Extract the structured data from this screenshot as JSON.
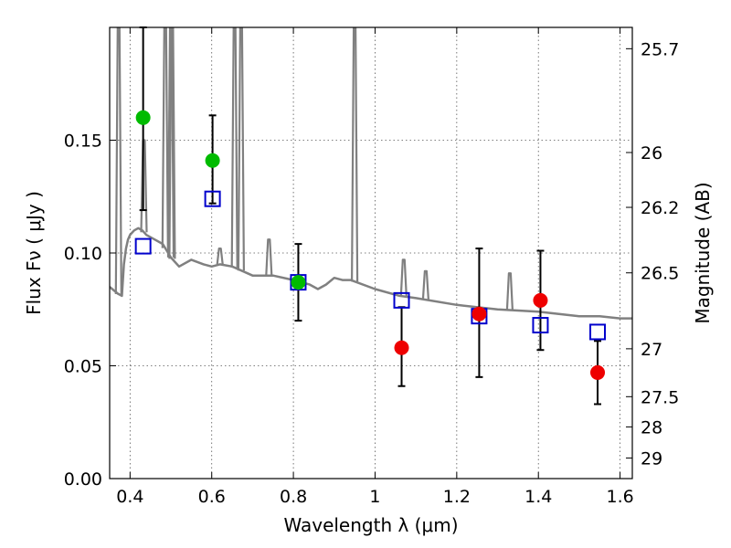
{
  "chart_data": {
    "type": "scatter",
    "title": "",
    "xlabel": "Wavelength  λ (μm)",
    "ylabel": "Flux  Fν  ( μJy )",
    "y2label": "Magnitude (AB)",
    "xlim": [
      0.35,
      1.63
    ],
    "ylim": [
      0.0,
      0.2
    ],
    "grid": true,
    "x_ticks": [
      0.4,
      0.6,
      0.8,
      1.0,
      1.2,
      1.4,
      1.6
    ],
    "x_tick_labels": [
      "0.4",
      "0.6",
      "0.8",
      "1",
      "1.2",
      "1.4",
      "1.6"
    ],
    "y_ticks": [
      0.0,
      0.05,
      0.1,
      0.15
    ],
    "y_tick_labels": [
      "0.00",
      "0.05",
      "0.10",
      "0.15"
    ],
    "y2_ticks": [
      {
        "label": "25.7",
        "flux": 0.19055
      },
      {
        "label": "26",
        "flux": 0.14454
      },
      {
        "label": "26.2",
        "flux": 0.12023
      },
      {
        "label": "26.5",
        "flux": 0.0912
      },
      {
        "label": "27",
        "flux": 0.05754
      },
      {
        "label": "27.5",
        "flux": 0.03631
      },
      {
        "label": "28",
        "flux": 0.02291
      },
      {
        "label": "29",
        "flux": 0.00912
      }
    ],
    "colors": {
      "model": "#808080",
      "model_photometry": "#0000cc",
      "detection": "#00bb00",
      "upper_limit": "#ee0000",
      "errorbar": "#000000",
      "grid": "#555555"
    },
    "series": [
      {
        "name": "Model SED",
        "kind": "line",
        "x": [
          0.35,
          0.37,
          0.38,
          0.385,
          0.39,
          0.395,
          0.4,
          0.41,
          0.42,
          0.43,
          0.44,
          0.46,
          0.48,
          0.5,
          0.52,
          0.55,
          0.58,
          0.6,
          0.62,
          0.65,
          0.7,
          0.75,
          0.8,
          0.84,
          0.86,
          0.88,
          0.9,
          0.92,
          0.94,
          1.0,
          1.06,
          1.1,
          1.2,
          1.3,
          1.4,
          1.5,
          1.55,
          1.6,
          1.63
        ],
        "y": [
          0.085,
          0.082,
          0.081,
          0.095,
          0.102,
          0.106,
          0.108,
          0.11,
          0.111,
          0.11,
          0.108,
          0.106,
          0.104,
          0.098,
          0.094,
          0.097,
          0.095,
          0.094,
          0.095,
          0.094,
          0.09,
          0.09,
          0.088,
          0.086,
          0.084,
          0.086,
          0.089,
          0.088,
          0.088,
          0.084,
          0.081,
          0.08,
          0.077,
          0.075,
          0.074,
          0.072,
          0.072,
          0.071,
          0.071
        ]
      },
      {
        "name": "Model emission lines",
        "kind": "spikes",
        "lines": [
          {
            "x": 0.372,
            "peak": 0.205
          },
          {
            "x": 0.434,
            "peak": 0.15
          },
          {
            "x": 0.486,
            "peak": 0.205
          },
          {
            "x": 0.5,
            "peak": 0.205
          },
          {
            "x": 0.503,
            "peak": 0.205
          },
          {
            "x": 0.62,
            "peak": 0.102
          },
          {
            "x": 0.656,
            "peak": 0.205
          },
          {
            "x": 0.672,
            "peak": 0.205
          },
          {
            "x": 0.74,
            "peak": 0.106
          },
          {
            "x": 0.95,
            "peak": 0.205
          },
          {
            "x": 1.07,
            "peak": 0.097
          },
          {
            "x": 1.124,
            "peak": 0.092
          },
          {
            "x": 1.33,
            "peak": 0.091
          }
        ]
      },
      {
        "name": "Model photometry",
        "kind": "open-square",
        "x": [
          0.432,
          0.602,
          0.812,
          1.065,
          1.255,
          1.405,
          1.545
        ],
        "y": [
          0.103,
          0.124,
          0.087,
          0.079,
          0.072,
          0.068,
          0.065
        ]
      },
      {
        "name": "Detections",
        "kind": "filled-circle",
        "x": [
          0.432,
          0.602,
          0.812
        ],
        "y": [
          0.16,
          0.141,
          0.087
        ],
        "yerr_low": [
          0.119,
          0.122,
          0.07
        ],
        "yerr_high": [
          0.2,
          0.161,
          0.104
        ]
      },
      {
        "name": "Upper limits",
        "kind": "filled-circle",
        "x": [
          1.065,
          1.255,
          1.405,
          1.545
        ],
        "y": [
          0.058,
          0.073,
          0.079,
          0.047
        ],
        "yerr_low": [
          0.041,
          0.045,
          0.057,
          0.033
        ],
        "yerr_high": [
          0.076,
          0.102,
          0.101,
          0.061
        ]
      }
    ]
  }
}
